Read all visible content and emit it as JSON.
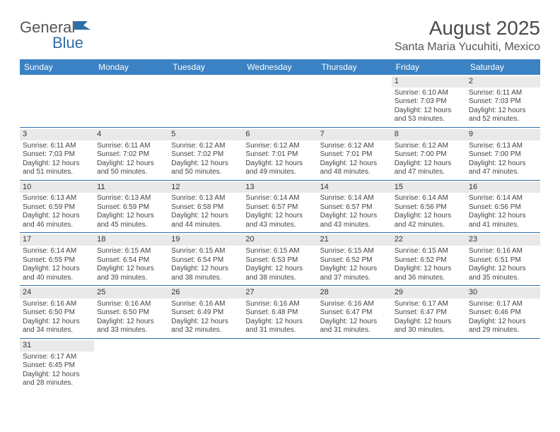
{
  "logo": {
    "part1": "General",
    "part2": "Blue"
  },
  "header": {
    "title": "August 2025",
    "subtitle": "Santa Maria Yucuhiti, Mexico"
  },
  "colors": {
    "header_bg": "#3b82c4",
    "header_text": "#ffffff",
    "daynum_bg": "#e9e9e9",
    "rule": "#2f6fa8",
    "body_text": "#444444"
  },
  "weekdays": [
    "Sunday",
    "Monday",
    "Tuesday",
    "Wednesday",
    "Thursday",
    "Friday",
    "Saturday"
  ],
  "weeks": [
    [
      null,
      null,
      null,
      null,
      null,
      {
        "d": "1",
        "sr": "Sunrise: 6:10 AM",
        "ss": "Sunset: 7:03 PM",
        "dl1": "Daylight: 12 hours",
        "dl2": "and 53 minutes."
      },
      {
        "d": "2",
        "sr": "Sunrise: 6:11 AM",
        "ss": "Sunset: 7:03 PM",
        "dl1": "Daylight: 12 hours",
        "dl2": "and 52 minutes."
      }
    ],
    [
      {
        "d": "3",
        "sr": "Sunrise: 6:11 AM",
        "ss": "Sunset: 7:03 PM",
        "dl1": "Daylight: 12 hours",
        "dl2": "and 51 minutes."
      },
      {
        "d": "4",
        "sr": "Sunrise: 6:11 AM",
        "ss": "Sunset: 7:02 PM",
        "dl1": "Daylight: 12 hours",
        "dl2": "and 50 minutes."
      },
      {
        "d": "5",
        "sr": "Sunrise: 6:12 AM",
        "ss": "Sunset: 7:02 PM",
        "dl1": "Daylight: 12 hours",
        "dl2": "and 50 minutes."
      },
      {
        "d": "6",
        "sr": "Sunrise: 6:12 AM",
        "ss": "Sunset: 7:01 PM",
        "dl1": "Daylight: 12 hours",
        "dl2": "and 49 minutes."
      },
      {
        "d": "7",
        "sr": "Sunrise: 6:12 AM",
        "ss": "Sunset: 7:01 PM",
        "dl1": "Daylight: 12 hours",
        "dl2": "and 48 minutes."
      },
      {
        "d": "8",
        "sr": "Sunrise: 6:12 AM",
        "ss": "Sunset: 7:00 PM",
        "dl1": "Daylight: 12 hours",
        "dl2": "and 47 minutes."
      },
      {
        "d": "9",
        "sr": "Sunrise: 6:13 AM",
        "ss": "Sunset: 7:00 PM",
        "dl1": "Daylight: 12 hours",
        "dl2": "and 47 minutes."
      }
    ],
    [
      {
        "d": "10",
        "sr": "Sunrise: 6:13 AM",
        "ss": "Sunset: 6:59 PM",
        "dl1": "Daylight: 12 hours",
        "dl2": "and 46 minutes."
      },
      {
        "d": "11",
        "sr": "Sunrise: 6:13 AM",
        "ss": "Sunset: 6:59 PM",
        "dl1": "Daylight: 12 hours",
        "dl2": "and 45 minutes."
      },
      {
        "d": "12",
        "sr": "Sunrise: 6:13 AM",
        "ss": "Sunset: 6:58 PM",
        "dl1": "Daylight: 12 hours",
        "dl2": "and 44 minutes."
      },
      {
        "d": "13",
        "sr": "Sunrise: 6:14 AM",
        "ss": "Sunset: 6:57 PM",
        "dl1": "Daylight: 12 hours",
        "dl2": "and 43 minutes."
      },
      {
        "d": "14",
        "sr": "Sunrise: 6:14 AM",
        "ss": "Sunset: 6:57 PM",
        "dl1": "Daylight: 12 hours",
        "dl2": "and 43 minutes."
      },
      {
        "d": "15",
        "sr": "Sunrise: 6:14 AM",
        "ss": "Sunset: 6:56 PM",
        "dl1": "Daylight: 12 hours",
        "dl2": "and 42 minutes."
      },
      {
        "d": "16",
        "sr": "Sunrise: 6:14 AM",
        "ss": "Sunset: 6:56 PM",
        "dl1": "Daylight: 12 hours",
        "dl2": "and 41 minutes."
      }
    ],
    [
      {
        "d": "17",
        "sr": "Sunrise: 6:14 AM",
        "ss": "Sunset: 6:55 PM",
        "dl1": "Daylight: 12 hours",
        "dl2": "and 40 minutes."
      },
      {
        "d": "18",
        "sr": "Sunrise: 6:15 AM",
        "ss": "Sunset: 6:54 PM",
        "dl1": "Daylight: 12 hours",
        "dl2": "and 39 minutes."
      },
      {
        "d": "19",
        "sr": "Sunrise: 6:15 AM",
        "ss": "Sunset: 6:54 PM",
        "dl1": "Daylight: 12 hours",
        "dl2": "and 38 minutes."
      },
      {
        "d": "20",
        "sr": "Sunrise: 6:15 AM",
        "ss": "Sunset: 6:53 PM",
        "dl1": "Daylight: 12 hours",
        "dl2": "and 38 minutes."
      },
      {
        "d": "21",
        "sr": "Sunrise: 6:15 AM",
        "ss": "Sunset: 6:52 PM",
        "dl1": "Daylight: 12 hours",
        "dl2": "and 37 minutes."
      },
      {
        "d": "22",
        "sr": "Sunrise: 6:15 AM",
        "ss": "Sunset: 6:52 PM",
        "dl1": "Daylight: 12 hours",
        "dl2": "and 36 minutes."
      },
      {
        "d": "23",
        "sr": "Sunrise: 6:16 AM",
        "ss": "Sunset: 6:51 PM",
        "dl1": "Daylight: 12 hours",
        "dl2": "and 35 minutes."
      }
    ],
    [
      {
        "d": "24",
        "sr": "Sunrise: 6:16 AM",
        "ss": "Sunset: 6:50 PM",
        "dl1": "Daylight: 12 hours",
        "dl2": "and 34 minutes."
      },
      {
        "d": "25",
        "sr": "Sunrise: 6:16 AM",
        "ss": "Sunset: 6:50 PM",
        "dl1": "Daylight: 12 hours",
        "dl2": "and 33 minutes."
      },
      {
        "d": "26",
        "sr": "Sunrise: 6:16 AM",
        "ss": "Sunset: 6:49 PM",
        "dl1": "Daylight: 12 hours",
        "dl2": "and 32 minutes."
      },
      {
        "d": "27",
        "sr": "Sunrise: 6:16 AM",
        "ss": "Sunset: 6:48 PM",
        "dl1": "Daylight: 12 hours",
        "dl2": "and 31 minutes."
      },
      {
        "d": "28",
        "sr": "Sunrise: 6:16 AM",
        "ss": "Sunset: 6:47 PM",
        "dl1": "Daylight: 12 hours",
        "dl2": "and 31 minutes."
      },
      {
        "d": "29",
        "sr": "Sunrise: 6:17 AM",
        "ss": "Sunset: 6:47 PM",
        "dl1": "Daylight: 12 hours",
        "dl2": "and 30 minutes."
      },
      {
        "d": "30",
        "sr": "Sunrise: 6:17 AM",
        "ss": "Sunset: 6:46 PM",
        "dl1": "Daylight: 12 hours",
        "dl2": "and 29 minutes."
      }
    ],
    [
      {
        "d": "31",
        "sr": "Sunrise: 6:17 AM",
        "ss": "Sunset: 6:45 PM",
        "dl1": "Daylight: 12 hours",
        "dl2": "and 28 minutes."
      },
      null,
      null,
      null,
      null,
      null,
      null
    ]
  ]
}
